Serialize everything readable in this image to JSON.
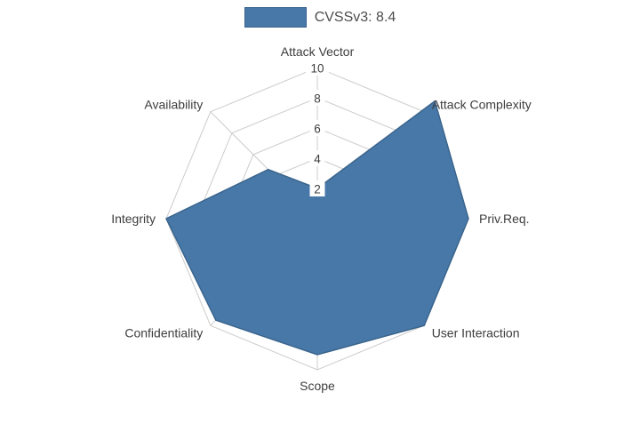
{
  "legend": {
    "label": "CVSSv3: 8.4"
  },
  "chart_data": {
    "type": "radar",
    "title": "CVSSv3: 8.4",
    "categories": [
      "Attack Vector",
      "Attack Complexity",
      "Priv.Req.",
      "User Interaction",
      "Scope",
      "Confidentiality",
      "Integrity",
      "Availability"
    ],
    "series": [
      {
        "name": "CVSSv3: 8.4",
        "values": [
          2,
          11,
          10,
          10,
          9,
          9.5,
          10,
          4.6
        ]
      }
    ],
    "ticks": [
      2,
      4,
      6,
      8,
      10
    ],
    "rmax": 10,
    "grid": true,
    "grid_shape": "polygon",
    "legend_position": "top-center",
    "colors": {
      "fill": "#4878a8",
      "stroke": "#3a648c",
      "grid": "#cccccc",
      "text": "#3d3d3d",
      "legend_text": "#4d4d4d",
      "tick_text": "#3d3d3d",
      "background": "#ffffff"
    }
  }
}
